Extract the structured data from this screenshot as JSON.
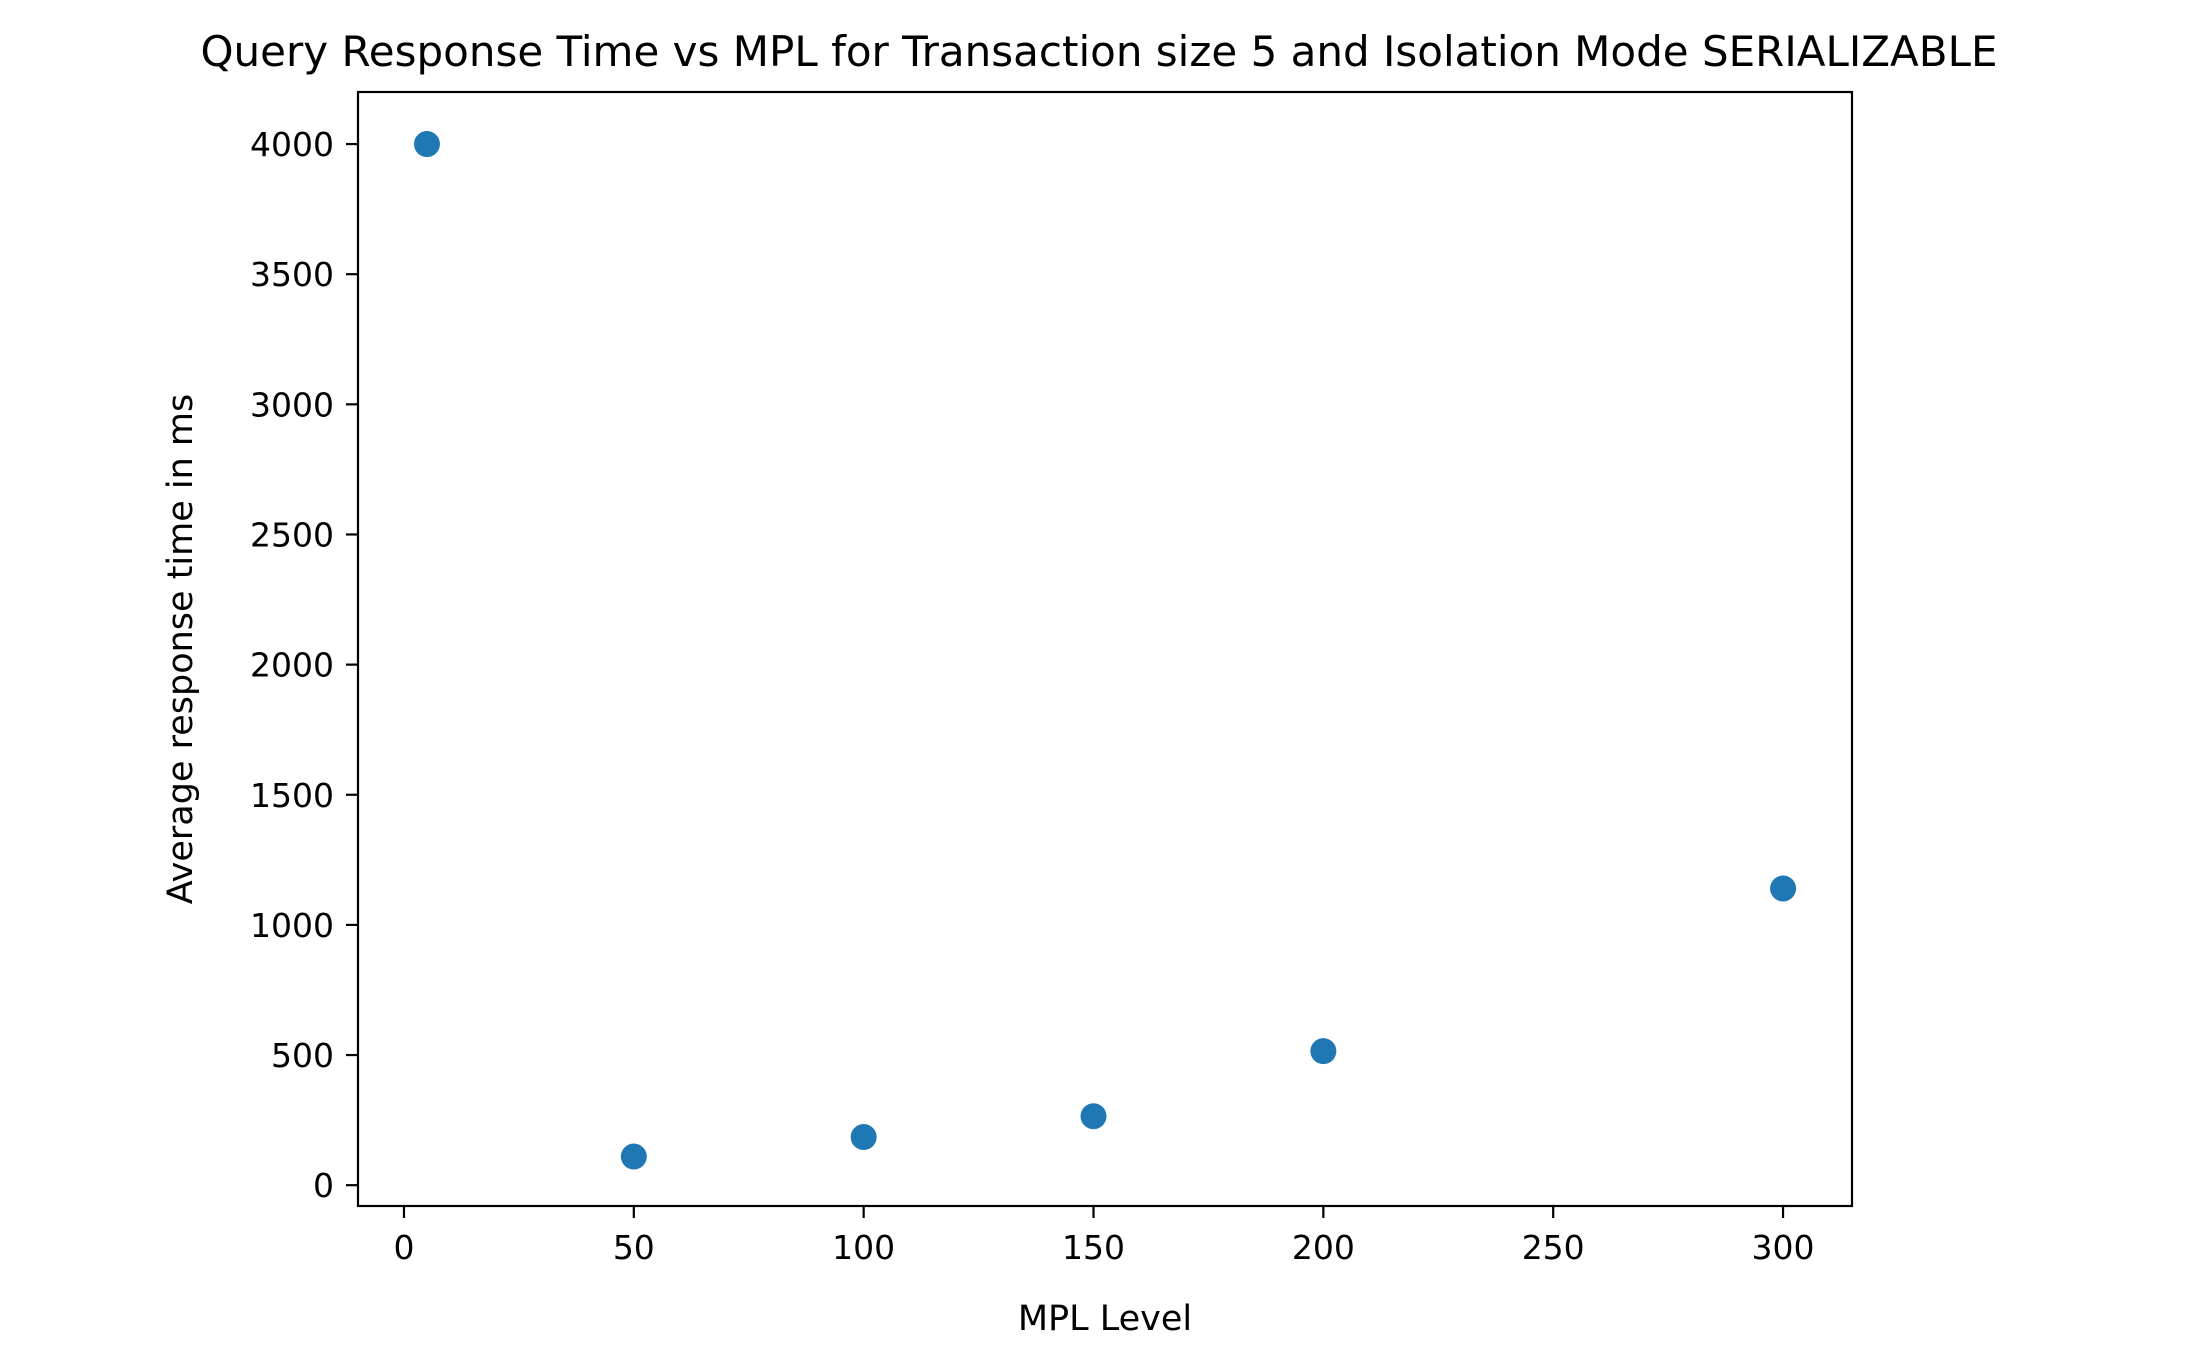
{
  "chart_data": {
    "type": "scatter",
    "title": "Query Response Time vs MPL for Transaction size 5 and Isolation Mode SERIALIZABLE",
    "xlabel": "MPL Level",
    "ylabel": "Average response time in ms",
    "xlim": [
      -10,
      315
    ],
    "ylim": [
      -80,
      4200
    ],
    "xticks": [
      0,
      50,
      100,
      150,
      200,
      250,
      300
    ],
    "yticks": [
      0,
      500,
      1000,
      1500,
      2000,
      2500,
      3000,
      3500,
      4000
    ],
    "grid": false,
    "color": "#1f77b4",
    "points": [
      {
        "x": 5,
        "y": 4000
      },
      {
        "x": 50,
        "y": 110
      },
      {
        "x": 100,
        "y": 185
      },
      {
        "x": 150,
        "y": 265
      },
      {
        "x": 200,
        "y": 515
      },
      {
        "x": 300,
        "y": 1140
      }
    ]
  }
}
